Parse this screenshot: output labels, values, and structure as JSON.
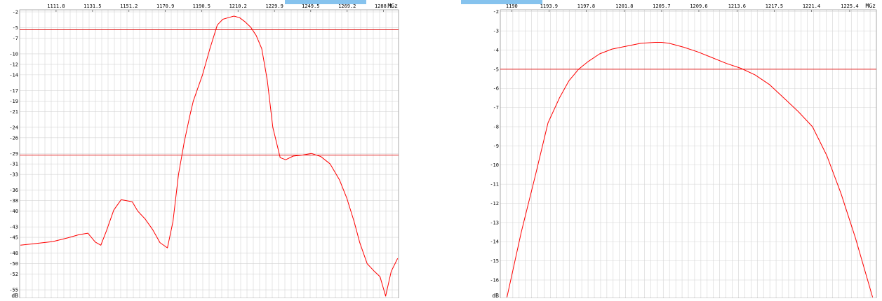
{
  "colors": {
    "trace": "#ff0000",
    "threshold": "#e02020",
    "grid": "#d4d4d4",
    "top_strip": "#86c3ee"
  },
  "chart_data": [
    {
      "type": "line",
      "title": "",
      "xunit": "MGz",
      "yunit": "dB",
      "xlim": [
        1092.1,
        1297.0
      ],
      "ylim": [
        -56.6,
        -1.6
      ],
      "xticks": [
        1111.8,
        1131.5,
        1151.2,
        1170.9,
        1190.5,
        1210.2,
        1229.9,
        1249.5,
        1269.2,
        1288.9
      ],
      "xtick_labels": [
        "1111.8",
        "1131.5",
        "1151.2",
        "1170.9",
        "1190.5",
        "1210.2",
        "1229.9",
        "1249.5",
        "1269.2",
        "1288.9"
      ],
      "yticks": [
        -2,
        -5,
        -7,
        -10,
        -12,
        -14,
        -17,
        -19,
        -21,
        -24,
        -26,
        -29,
        -31,
        -33,
        -36,
        -38,
        -40,
        -43,
        -45,
        -48,
        -50,
        -52,
        -55
      ],
      "ytick_labels": [
        "-2",
        "-5",
        "-7",
        "-10",
        "-12",
        "-14",
        "-17",
        "-19",
        "-21",
        "-24",
        "-26",
        "-29",
        "-31",
        "-33",
        "-36",
        "-38",
        "-40",
        "-43",
        "-45",
        "-48",
        "-50",
        "-52",
        "-55"
      ],
      "grid": true,
      "thresholds": [
        -5.4,
        -29.3
      ],
      "series": [
        {
          "x": [
            1092.5,
            1100,
            1110,
            1118,
            1124,
            1129,
            1133,
            1136,
            1139,
            1143,
            1147,
            1150,
            1153,
            1156,
            1160,
            1164,
            1168,
            1172,
            1175,
            1178,
            1181,
            1184,
            1186,
            1188,
            1191,
            1195,
            1199,
            1202,
            1205,
            1208,
            1211,
            1214,
            1217,
            1220,
            1223,
            1226,
            1229,
            1233,
            1236,
            1240,
            1245,
            1250,
            1255,
            1260,
            1265,
            1269,
            1273,
            1276,
            1280,
            1284,
            1287,
            1290,
            1293,
            1296.5
          ],
          "y": [
            -46.5,
            -46.2,
            -45.8,
            -45.1,
            -44.5,
            -44.2,
            -45.9,
            -46.5,
            -43.8,
            -39.8,
            -37.8,
            -38.0,
            -38.2,
            -40.0,
            -41.5,
            -43.5,
            -46.0,
            -47.0,
            -42.0,
            -33.0,
            -27.0,
            -22.0,
            -19.0,
            -17.0,
            -14.0,
            -9.0,
            -4.5,
            -3.4,
            -3.1,
            -2.8,
            -3.1,
            -3.9,
            -4.9,
            -6.5,
            -9.0,
            -15.0,
            -24.0,
            -29.8,
            -30.2,
            -29.5,
            -29.3,
            -29.0,
            -29.6,
            -31.0,
            -34.0,
            -37.5,
            -42.0,
            -46.0,
            -50.0,
            -51.5,
            -52.5,
            -56.2,
            -51.5,
            -49.0
          ]
        }
      ]
    },
    {
      "type": "line",
      "title": "",
      "xunit": "MGz",
      "yunit": "dB",
      "xlim": [
        1188.8,
        1228.2
      ],
      "ylim": [
        -16.95,
        -1.9
      ],
      "xticks": [
        1190,
        1193.9,
        1197.8,
        1201.8,
        1205.7,
        1209.6,
        1213.6,
        1217.5,
        1221.4,
        1225.4
      ],
      "xtick_labels": [
        "1190",
        "1193.9",
        "1197.8",
        "1201.8",
        "1205.7",
        "1209.6",
        "1213.6",
        "1217.5",
        "1221.4",
        "1225.4"
      ],
      "yticks": [
        -2,
        -3,
        -4,
        -5,
        -6,
        -7,
        -8,
        -9,
        -10,
        -11,
        -12,
        -13,
        -14,
        -15,
        -16
      ],
      "ytick_labels": [
        "-2",
        "-3",
        "-4",
        "-5",
        "-6",
        "-7",
        "-8",
        "-9",
        "-10",
        "-11",
        "-12",
        "-13",
        "-14",
        "-15",
        "-16"
      ],
      "grid": true,
      "thresholds": [
        -5.0
      ],
      "series": [
        {
          "x": [
            1189.5,
            1191.0,
            1192.5,
            1193.8,
            1195.0,
            1196.0,
            1197.0,
            1198.0,
            1199.2,
            1200.5,
            1202.0,
            1203.5,
            1205.0,
            1205.7,
            1206.5,
            1208.0,
            1209.5,
            1211.0,
            1212.5,
            1214.0,
            1215.5,
            1217.0,
            1218.5,
            1220.0,
            1221.5,
            1223.0,
            1224.5,
            1226.0,
            1227.8
          ],
          "y": [
            -16.9,
            -13.5,
            -10.5,
            -7.8,
            -6.5,
            -5.6,
            -5.0,
            -4.6,
            -4.2,
            -3.95,
            -3.8,
            -3.65,
            -3.6,
            -3.6,
            -3.65,
            -3.85,
            -4.1,
            -4.4,
            -4.7,
            -4.95,
            -5.3,
            -5.8,
            -6.5,
            -7.2,
            -8.0,
            -9.5,
            -11.5,
            -13.8,
            -16.9
          ]
        }
      ]
    }
  ]
}
